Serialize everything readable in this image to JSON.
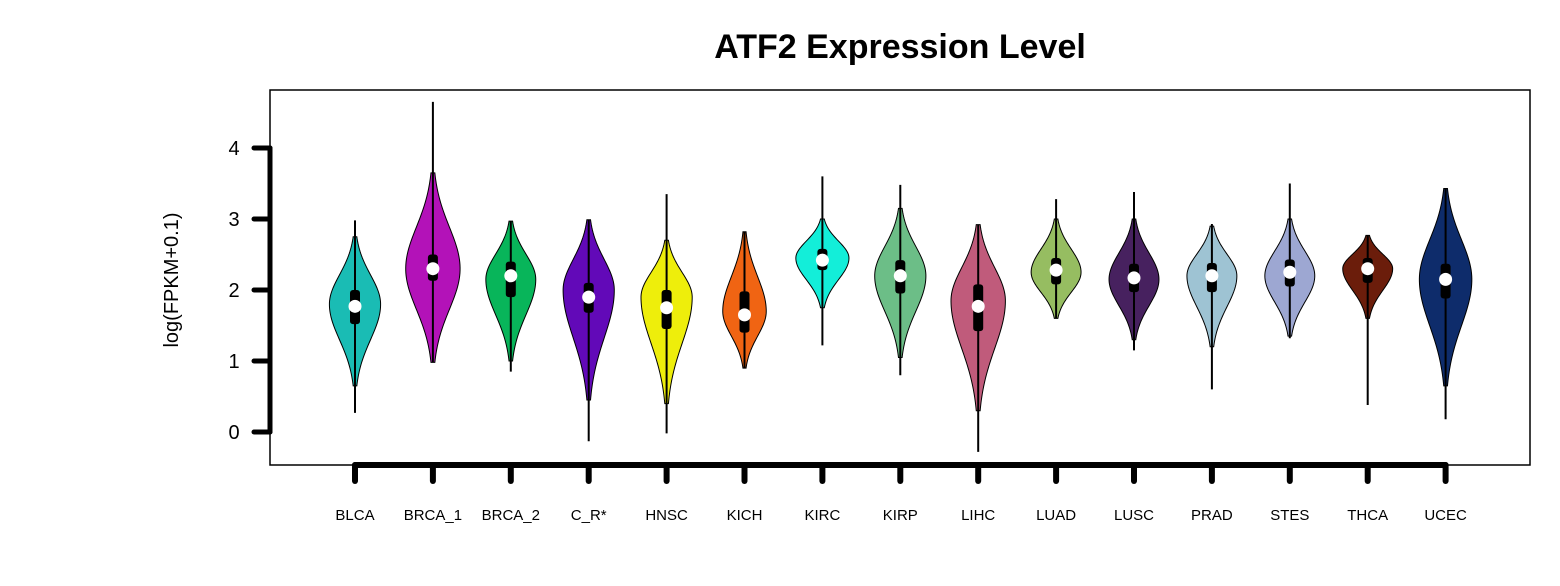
{
  "chart_data": {
    "type": "violin",
    "title": "ATF2 Expression Level",
    "xlabel": "",
    "ylabel": "log(FPKM+0.1)",
    "ylim": [
      -0.45,
      4.8
    ],
    "yticks": [
      0,
      1,
      2,
      3,
      4
    ],
    "grid": false,
    "legend": "none",
    "categories": [
      "BLCA",
      "BRCA_1",
      "BRCA_2",
      "C_R*",
      "HNSC",
      "KICH",
      "KIRC",
      "KIRP",
      "LIHC",
      "LUAD",
      "LUSC",
      "PRAD",
      "STES",
      "THCA",
      "UCEC"
    ],
    "series": [
      {
        "category": "BLCA",
        "color": "#1ABCB4",
        "min": 0.27,
        "q1": 1.52,
        "median": 1.77,
        "q3": 2.0,
        "max": 2.98,
        "whisker_low": 0.65,
        "whisker_high": 2.7,
        "violin_low": 0.65,
        "violin_high": 2.75,
        "mode": 1.8,
        "max_halfwidth": 0.8
      },
      {
        "category": "BRCA_1",
        "color": "#B312B8",
        "min": 0.98,
        "q1": 2.13,
        "median": 2.3,
        "q3": 2.5,
        "max": 4.65,
        "whisker_low": 1.57,
        "whisker_high": 3.6,
        "violin_low": 0.98,
        "violin_high": 3.65,
        "mode": 2.3,
        "max_halfwidth": 0.85
      },
      {
        "category": "BRCA_2",
        "color": "#08B55A",
        "min": 0.85,
        "q1": 1.9,
        "median": 2.2,
        "q3": 2.4,
        "max": 2.97,
        "whisker_low": 1.05,
        "whisker_high": 2.95,
        "violin_low": 1.0,
        "violin_high": 2.97,
        "mode": 2.15,
        "max_halfwidth": 0.78
      },
      {
        "category": "C_R*",
        "color": "#6209B8",
        "min": -0.13,
        "q1": 1.68,
        "median": 1.9,
        "q3": 2.1,
        "max": 2.99,
        "whisker_low": 0.45,
        "whisker_high": 2.8,
        "violin_low": 0.45,
        "violin_high": 2.99,
        "mode": 2.0,
        "max_halfwidth": 0.8
      },
      {
        "category": "HNSC",
        "color": "#EEEE0B",
        "min": -0.02,
        "q1": 1.45,
        "median": 1.75,
        "q3": 2.0,
        "max": 3.35,
        "whisker_low": 0.5,
        "whisker_high": 2.75,
        "violin_low": 0.4,
        "violin_high": 2.7,
        "mode": 1.9,
        "max_halfwidth": 0.8
      },
      {
        "category": "KICH",
        "color": "#F06413",
        "min": 0.9,
        "q1": 1.4,
        "median": 1.65,
        "q3": 1.98,
        "max": 2.82,
        "whisker_low": 0.9,
        "whisker_high": 2.82,
        "violin_low": 0.9,
        "violin_high": 2.82,
        "mode": 1.7,
        "max_halfwidth": 0.68
      },
      {
        "category": "KIRC",
        "color": "#13EED9",
        "min": 1.22,
        "q1": 2.28,
        "median": 2.42,
        "q3": 2.58,
        "max": 3.6,
        "whisker_low": 1.7,
        "whisker_high": 3.05,
        "violin_low": 1.75,
        "violin_high": 3.0,
        "mode": 2.45,
        "max_halfwidth": 0.83
      },
      {
        "category": "KIRP",
        "color": "#6CBE87",
        "min": 0.8,
        "q1": 1.95,
        "median": 2.2,
        "q3": 2.42,
        "max": 3.48,
        "whisker_low": 1.1,
        "whisker_high": 3.1,
        "violin_low": 1.05,
        "violin_high": 3.15,
        "mode": 2.2,
        "max_halfwidth": 0.8
      },
      {
        "category": "LIHC",
        "color": "#C05B7B",
        "min": -0.28,
        "q1": 1.42,
        "median": 1.77,
        "q3": 2.08,
        "max": 2.92,
        "whisker_low": 0.25,
        "whisker_high": 2.9,
        "violin_low": 0.3,
        "violin_high": 2.92,
        "mode": 1.85,
        "max_halfwidth": 0.85
      },
      {
        "category": "LUAD",
        "color": "#96BD61",
        "min": 1.6,
        "q1": 2.08,
        "median": 2.28,
        "q3": 2.45,
        "max": 3.28,
        "whisker_low": 1.62,
        "whisker_high": 3.0,
        "violin_low": 1.6,
        "violin_high": 3.0,
        "mode": 2.25,
        "max_halfwidth": 0.78
      },
      {
        "category": "LUSC",
        "color": "#47215F",
        "min": 1.15,
        "q1": 1.97,
        "median": 2.17,
        "q3": 2.37,
        "max": 3.38,
        "whisker_low": 1.35,
        "whisker_high": 3.0,
        "violin_low": 1.3,
        "violin_high": 3.0,
        "mode": 2.15,
        "max_halfwidth": 0.78
      },
      {
        "category": "PRAD",
        "color": "#9EC3D3",
        "min": 0.6,
        "q1": 1.97,
        "median": 2.2,
        "q3": 2.38,
        "max": 2.93,
        "whisker_low": 1.35,
        "whisker_high": 2.9,
        "violin_low": 1.2,
        "violin_high": 2.9,
        "mode": 2.2,
        "max_halfwidth": 0.78
      },
      {
        "category": "STES",
        "color": "#9DA7D2",
        "min": 1.32,
        "q1": 2.05,
        "median": 2.25,
        "q3": 2.43,
        "max": 3.5,
        "whisker_low": 1.5,
        "whisker_high": 3.0,
        "violin_low": 1.35,
        "violin_high": 3.0,
        "mode": 2.2,
        "max_halfwidth": 0.78
      },
      {
        "category": "THCA",
        "color": "#6B1D0B",
        "min": 0.38,
        "q1": 2.1,
        "median": 2.3,
        "q3": 2.45,
        "max": 2.77,
        "whisker_low": 1.6,
        "whisker_high": 2.77,
        "violin_low": 1.6,
        "violin_high": 2.77,
        "mode": 2.3,
        "max_halfwidth": 0.78
      },
      {
        "category": "UCEC",
        "color": "#0E2C6B",
        "min": 0.18,
        "q1": 1.88,
        "median": 2.15,
        "q3": 2.37,
        "max": 3.43,
        "whisker_low": 0.7,
        "whisker_high": 3.43,
        "violin_low": 0.65,
        "violin_high": 3.43,
        "mode": 2.15,
        "max_halfwidth": 0.82
      }
    ]
  }
}
